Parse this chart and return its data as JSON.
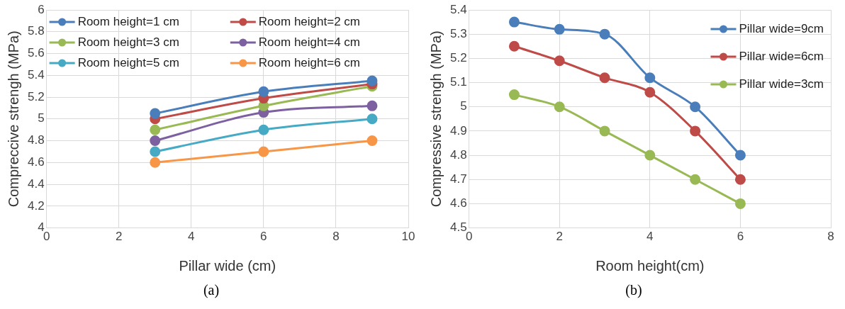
{
  "chart_data": [
    {
      "type": "line",
      "xlabel": "Pillar wide (cm)",
      "ylabel": "Compreccive strengh (MPa)",
      "x": [
        3,
        6,
        9
      ],
      "xlim": [
        0,
        10
      ],
      "xticks": [
        0,
        2,
        4,
        6,
        8,
        10
      ],
      "ylim": [
        4,
        6
      ],
      "yticks": [
        4,
        {
          "value": 4.2,
          "label": "4.2"
        },
        {
          "value": 4.4,
          "label": "4.4"
        },
        {
          "value": 4.6,
          "label": "4.6"
        },
        {
          "value": 4.8,
          "label": "4.8"
        },
        5,
        {
          "value": 5.2,
          "label": "5.2"
        },
        {
          "value": 5.4,
          "label": "5.4"
        },
        {
          "value": 5.6,
          "label": "5.6"
        },
        {
          "value": 5.8,
          "label": "5.8"
        },
        6
      ],
      "grid": true,
      "legend": "top",
      "marker": "circle",
      "line_style": "solid",
      "annotations": [
        "(a)"
      ],
      "series": [
        {
          "name": "Room height=1 cm",
          "color": "#4a7ebb",
          "values": [
            5.05,
            5.25,
            5.35
          ]
        },
        {
          "name": "Room height=2 cm",
          "color": "#be4b48",
          "values": [
            5.0,
            5.19,
            5.32
          ]
        },
        {
          "name": "Room height=3 cm",
          "color": "#98b954",
          "values": [
            4.9,
            5.12,
            5.3
          ]
        },
        {
          "name": "Room height=4 cm",
          "color": "#7d60a0",
          "values": [
            4.8,
            5.06,
            5.12
          ]
        },
        {
          "name": "Room height=5 cm",
          "color": "#46aac5",
          "values": [
            4.7,
            4.9,
            5.0
          ]
        },
        {
          "name": "Room height=6 cm",
          "color": "#f79646",
          "values": [
            4.6,
            4.7,
            4.8
          ]
        }
      ]
    },
    {
      "type": "line",
      "xlabel": "Room height(cm)",
      "ylabel": "Compressive strengh (MPa)",
      "x": [
        1,
        2,
        3,
        4,
        5,
        6
      ],
      "xlim": [
        0,
        8
      ],
      "xticks": [
        0,
        2,
        4,
        6,
        8
      ],
      "ylim": [
        4.5,
        5.4
      ],
      "yticks": [
        {
          "value": 4.5,
          "label": "4.5"
        },
        {
          "value": 4.6,
          "label": "4.6"
        },
        {
          "value": 4.7,
          "label": "4.7"
        },
        {
          "value": 4.8,
          "label": "4.8"
        },
        {
          "value": 4.9,
          "label": "4.9"
        },
        5,
        {
          "value": 5.1,
          "label": "5.1"
        },
        {
          "value": 5.2,
          "label": "5.2"
        },
        {
          "value": 5.3,
          "label": "5.3"
        },
        {
          "value": 5.4,
          "label": "5.4"
        }
      ],
      "grid": true,
      "legend": "top right",
      "marker": "circle",
      "line_style": "solid",
      "annotations": [
        "(b)"
      ],
      "series": [
        {
          "name": "Pillar wide=9cm",
          "color": "#4a7ebb",
          "values": [
            5.35,
            5.32,
            5.3,
            5.12,
            5.0,
            4.8
          ]
        },
        {
          "name": "Pillar wide=6cm",
          "color": "#be4b48",
          "values": [
            5.25,
            5.19,
            5.12,
            5.06,
            4.9,
            4.7
          ]
        },
        {
          "name": "Pillar wide=3cm",
          "color": "#98b954",
          "values": [
            5.05,
            5.0,
            4.9,
            4.8,
            4.7,
            4.6
          ]
        }
      ]
    }
  ]
}
